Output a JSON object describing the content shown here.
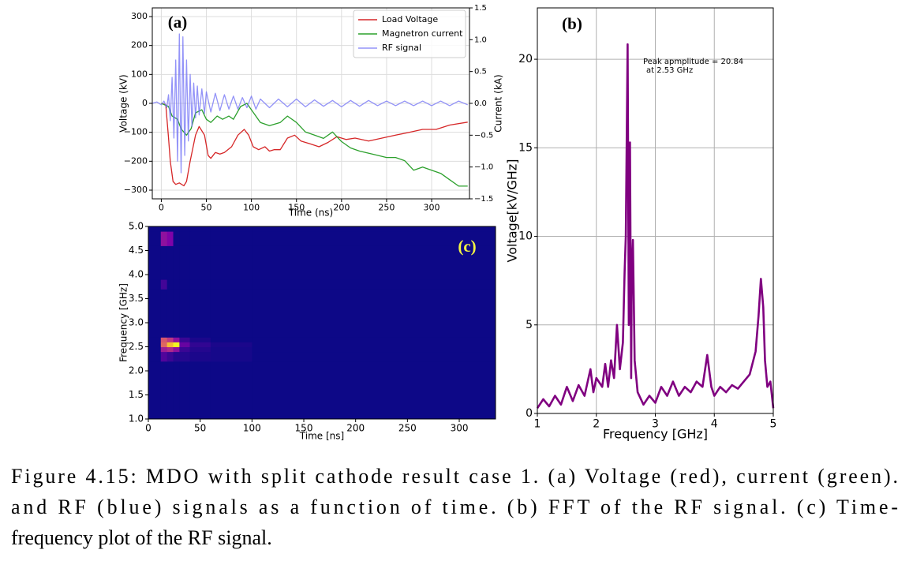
{
  "chart_data": [
    {
      "type": "line",
      "panel_label": "(a)",
      "xlabel": "Time (ns)",
      "ylabel": "Voltage (kV)",
      "y2label": "Current (kA)",
      "ylabel_color": "#d62728",
      "y2label_color": "#2ca02c",
      "grid": true,
      "legend": "upper right",
      "xlim": [
        -10,
        342
      ],
      "xticks": [
        0,
        50,
        100,
        150,
        200,
        250,
        300
      ],
      "ylim": [
        -330,
        330
      ],
      "yticks": [
        {
          "value": -300,
          "label": "−300"
        },
        {
          "value": -200,
          "label": "−200"
        },
        {
          "value": -100,
          "label": "−100"
        },
        0,
        100,
        200,
        300
      ],
      "y2lim": [
        -1.5,
        1.5
      ],
      "y2ticks": [
        {
          "value": -1.5,
          "label": "−1.5"
        },
        {
          "value": -1.0,
          "label": "−1.0"
        },
        {
          "value": -0.5,
          "label": "−0.5"
        },
        {
          "value": 0,
          "label": "0.0"
        },
        0.5,
        {
          "value": 1.0,
          "label": "1.0"
        },
        1.5
      ],
      "series": [
        {
          "name": "Load Voltage",
          "color": "#d62728",
          "x": [
            0,
            5,
            8,
            10,
            13,
            16,
            20,
            25,
            28,
            32,
            38,
            42,
            48,
            52,
            55,
            60,
            65,
            70,
            78,
            85,
            92,
            97,
            102,
            108,
            115,
            120,
            125,
            132,
            140,
            148,
            155,
            165,
            175,
            185,
            195,
            205,
            215,
            230,
            245,
            260,
            275,
            290,
            305,
            320,
            340
          ],
          "values": [
            0,
            -5,
            -120,
            -200,
            -270,
            -280,
            -275,
            -285,
            -270,
            -200,
            -110,
            -80,
            -110,
            -180,
            -190,
            -170,
            -175,
            -170,
            -150,
            -110,
            -90,
            -110,
            -150,
            -160,
            -150,
            -165,
            -160,
            -160,
            -120,
            -110,
            -130,
            -140,
            -150,
            -135,
            -115,
            -125,
            -120,
            -130,
            -120,
            -110,
            -100,
            -90,
            -90,
            -75,
            -65
          ]
        },
        {
          "name": "Magnetron current",
          "color": "#2ca02c",
          "axis": "y2",
          "x": [
            0,
            8,
            12,
            18,
            22,
            28,
            33,
            38,
            45,
            50,
            55,
            62,
            68,
            75,
            80,
            88,
            95,
            100,
            110,
            120,
            132,
            140,
            150,
            160,
            170,
            180,
            190,
            200,
            210,
            220,
            235,
            250,
            260,
            270,
            280,
            290,
            300,
            310,
            320,
            330,
            340
          ],
          "values": [
            0,
            -0.05,
            -0.2,
            -0.25,
            -0.4,
            -0.5,
            -0.4,
            -0.15,
            -0.1,
            -0.25,
            -0.3,
            -0.2,
            -0.25,
            -0.2,
            -0.25,
            -0.05,
            0.0,
            -0.1,
            -0.3,
            -0.35,
            -0.3,
            -0.2,
            -0.3,
            -0.45,
            -0.5,
            -0.55,
            -0.45,
            -0.6,
            -0.7,
            -0.75,
            -0.8,
            -0.85,
            -0.85,
            -0.9,
            -1.05,
            -1.0,
            -1.05,
            -1.1,
            -1.2,
            -1.3,
            -1.3
          ]
        },
        {
          "name": "RF signal",
          "color": "#6f6ff5",
          "alpha": 0.75,
          "x": [
            -10,
            -5,
            0,
            3,
            6,
            8,
            10,
            12,
            14,
            16,
            18,
            20,
            22,
            24,
            26,
            28,
            30,
            32,
            34,
            36,
            38,
            40,
            42,
            45,
            48,
            50,
            55,
            60,
            65,
            70,
            75,
            80,
            85,
            90,
            95,
            100,
            105,
            110,
            120,
            130,
            140,
            150,
            160,
            170,
            180,
            190,
            200,
            210,
            220,
            230,
            240,
            250,
            260,
            270,
            280,
            290,
            300,
            310,
            320,
            330,
            340
          ],
          "values": [
            0,
            5,
            -5,
            8,
            -15,
            30,
            -60,
            90,
            -120,
            150,
            -200,
            240,
            -240,
            230,
            -180,
            150,
            -130,
            100,
            -80,
            70,
            -50,
            60,
            -40,
            50,
            -35,
            40,
            -30,
            35,
            -25,
            30,
            -20,
            25,
            -20,
            20,
            -15,
            25,
            -20,
            15,
            -15,
            15,
            -12,
            15,
            -12,
            12,
            -10,
            10,
            -12,
            10,
            -10,
            10,
            -8,
            8,
            -8,
            8,
            -8,
            8,
            -8,
            8,
            -8,
            8,
            -5
          ]
        }
      ]
    },
    {
      "type": "line",
      "panel_label": "(b)",
      "xlabel": "Frequency [GHz]",
      "ylabel": "Voltage[kV/GHz]",
      "grid": true,
      "annotation": [
        "Peak apmplitude = 20.84",
        "at 2.53 GHz"
      ],
      "xlim": [
        1,
        5
      ],
      "xticks": [
        1,
        2,
        3,
        4,
        5
      ],
      "ylim": [
        0,
        22.9
      ],
      "yticks": [
        0,
        5,
        10,
        15,
        20
      ],
      "series": [
        {
          "color": "#800080",
          "x": [
            1.0,
            1.1,
            1.2,
            1.3,
            1.4,
            1.5,
            1.6,
            1.7,
            1.8,
            1.9,
            1.95,
            2.0,
            2.1,
            2.15,
            2.2,
            2.25,
            2.3,
            2.35,
            2.4,
            2.45,
            2.48,
            2.5,
            2.53,
            2.55,
            2.57,
            2.59,
            2.6,
            2.62,
            2.65,
            2.7,
            2.8,
            2.9,
            3.0,
            3.1,
            3.2,
            3.3,
            3.4,
            3.5,
            3.6,
            3.7,
            3.8,
            3.88,
            3.95,
            4.0,
            4.1,
            4.2,
            4.3,
            4.4,
            4.5,
            4.6,
            4.7,
            4.75,
            4.79,
            4.83,
            4.86,
            4.9,
            4.95,
            5.0
          ],
          "values": [
            0.3,
            0.8,
            0.4,
            1.0,
            0.5,
            1.5,
            0.7,
            1.6,
            1.0,
            2.5,
            1.2,
            2.0,
            1.5,
            2.8,
            1.5,
            3.0,
            2.0,
            5.0,
            2.5,
            4.0,
            8.0,
            10.0,
            20.84,
            5.0,
            15.3,
            2.0,
            8.0,
            9.8,
            3.0,
            1.2,
            0.5,
            1.0,
            0.6,
            1.5,
            1.0,
            1.8,
            1.0,
            1.5,
            1.2,
            1.8,
            1.5,
            3.3,
            1.5,
            1.0,
            1.5,
            1.2,
            1.6,
            1.4,
            1.8,
            2.2,
            3.5,
            5.5,
            7.6,
            6.0,
            3.0,
            1.5,
            1.8,
            0.3
          ]
        }
      ]
    },
    {
      "type": "heatmap",
      "panel_label": "(c)",
      "xlabel": "Time [ns]",
      "ylabel": "Frequency [GHz]",
      "grid": false,
      "colormap": "plasma",
      "clim": [
        0,
        1
      ],
      "xlim": [
        0,
        335
      ],
      "xticks": [
        0,
        50,
        100,
        150,
        200,
        250,
        300
      ],
      "ylim": [
        1,
        5
      ],
      "yticks": [
        {
          "value": 1,
          "label": "1.0"
        },
        1.5,
        {
          "value": 2,
          "label": "2.0"
        },
        2.5,
        {
          "value": 3,
          "label": "3.0"
        },
        3.5,
        {
          "value": 4,
          "label": "4.0"
        },
        4.5,
        {
          "value": 5,
          "label": "5.0"
        }
      ],
      "x_edges": [
        0,
        12,
        18,
        24,
        30,
        40,
        60,
        100,
        335
      ],
      "y_edges": [
        1.0,
        2.2,
        2.4,
        2.5,
        2.6,
        2.7,
        3.7,
        3.9,
        4.6,
        4.9,
        5.0
      ],
      "values": [
        [
          0,
          0,
          0,
          0,
          0,
          0,
          0,
          0
        ],
        [
          0,
          0.15,
          0.1,
          0.05,
          0.05,
          0.03,
          0.02,
          0
        ],
        [
          0,
          0.35,
          0.4,
          0.3,
          0.1,
          0.05,
          0.02,
          0
        ],
        [
          0,
          0.6,
          0.85,
          1.0,
          0.2,
          0.08,
          0.03,
          0
        ],
        [
          0,
          0.55,
          0.45,
          0.3,
          0.1,
          0.03,
          0,
          0
        ],
        [
          0,
          0,
          0,
          0,
          0,
          0,
          0,
          0
        ],
        [
          0,
          0.12,
          0,
          0,
          0,
          0,
          0,
          0
        ],
        [
          0,
          0,
          0,
          0,
          0,
          0,
          0,
          0
        ],
        [
          0,
          0.3,
          0.25,
          0,
          0,
          0,
          0,
          0
        ],
        [
          0,
          0,
          0,
          0,
          0,
          0,
          0,
          0
        ]
      ]
    }
  ],
  "caption": {
    "lines": [
      "Figure 4.15: MDO with split cathode result case 1. (a) Voltage (red), current (green).",
      "and RF (blue) signals as a function of time. (b) FFT of the RF signal. (c) Time-",
      "frequency plot of the RF signal."
    ]
  }
}
